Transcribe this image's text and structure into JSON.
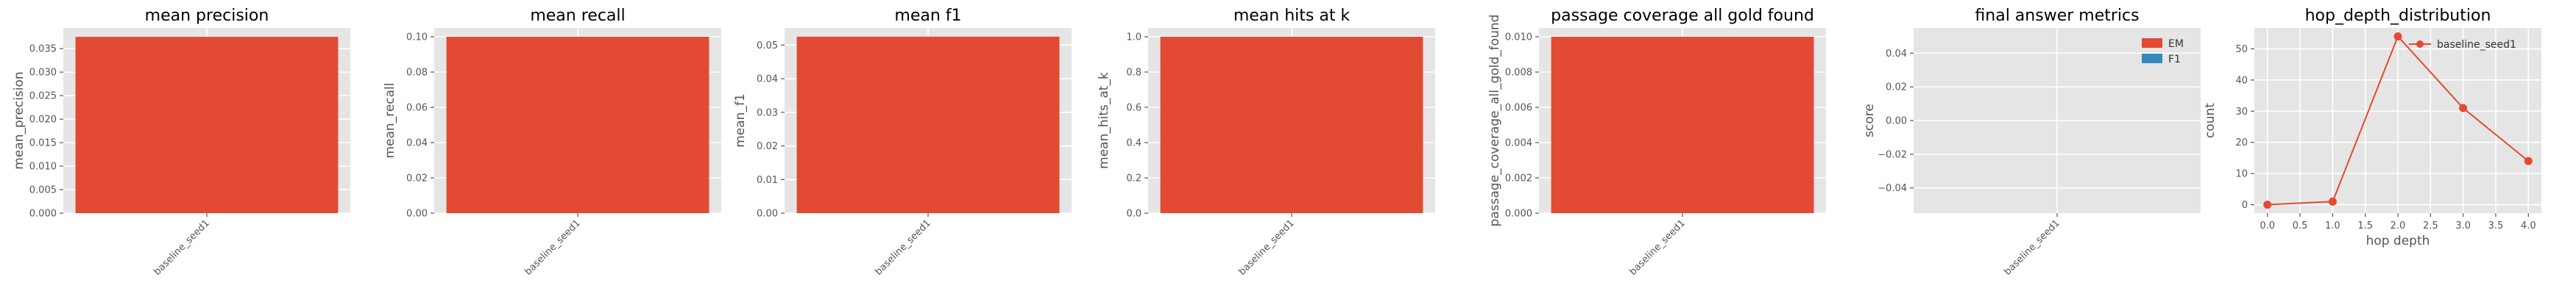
{
  "colors": {
    "red": "#E24A33",
    "blue": "#348ABD",
    "panel_bg": "#E5E5E5",
    "grid": "#FFFFFF"
  },
  "chart_data": [
    {
      "type": "bar",
      "title": "mean precision",
      "xlabel": "",
      "ylabel": "mean_precision",
      "categories": [
        "baseline_seed1"
      ],
      "values": [
        0.0375
      ],
      "ylim": [
        0,
        0.0394
      ],
      "yticks": [
        0.0,
        0.005,
        0.01,
        0.015,
        0.02,
        0.025,
        0.03,
        0.035
      ],
      "ytick_labels": [
        "0.000",
        "0.005",
        "0.010",
        "0.015",
        "0.020",
        "0.025",
        "0.030",
        "0.035"
      ],
      "grid": true
    },
    {
      "type": "bar",
      "title": "mean recall",
      "xlabel": "",
      "ylabel": "mean_recall",
      "categories": [
        "baseline_seed1"
      ],
      "values": [
        0.1
      ],
      "ylim": [
        0,
        0.105
      ],
      "yticks": [
        0.0,
        0.02,
        0.04,
        0.06,
        0.08,
        0.1
      ],
      "ytick_labels": [
        "0.00",
        "0.02",
        "0.04",
        "0.06",
        "0.08",
        "0.10"
      ],
      "grid": true
    },
    {
      "type": "bar",
      "title": "mean f1",
      "xlabel": "",
      "ylabel": "mean_f1",
      "categories": [
        "baseline_seed1"
      ],
      "values": [
        0.0525
      ],
      "ylim": [
        0,
        0.0551
      ],
      "yticks": [
        0.0,
        0.01,
        0.02,
        0.03,
        0.04,
        0.05
      ],
      "ytick_labels": [
        "0.00",
        "0.01",
        "0.02",
        "0.03",
        "0.04",
        "0.05"
      ],
      "grid": true
    },
    {
      "type": "bar",
      "title": "mean hits at k",
      "xlabel": "",
      "ylabel": "mean_hits_at_k",
      "categories": [
        "baseline_seed1"
      ],
      "values": [
        1.0
      ],
      "ylim": [
        0,
        1.05
      ],
      "yticks": [
        0.0,
        0.2,
        0.4,
        0.6,
        0.8,
        1.0
      ],
      "ytick_labels": [
        "0.0",
        "0.2",
        "0.4",
        "0.6",
        "0.8",
        "1.0"
      ],
      "grid": true
    },
    {
      "type": "bar",
      "title": "passage coverage all gold found",
      "xlabel": "",
      "ylabel": "passage_coverage_all_gold_found",
      "categories": [
        "baseline_seed1"
      ],
      "values": [
        0.01
      ],
      "ylim": [
        0,
        0.0105
      ],
      "yticks": [
        0.0,
        0.002,
        0.004,
        0.006,
        0.008,
        0.01
      ],
      "ytick_labels": [
        "0.000",
        "0.002",
        "0.004",
        "0.006",
        "0.008",
        "0.010"
      ],
      "grid": true
    },
    {
      "type": "bar",
      "title": "final answer metrics",
      "xlabel": "",
      "ylabel": "score",
      "categories": [
        "baseline_seed1"
      ],
      "series": [
        {
          "name": "EM",
          "values": [
            0
          ],
          "color": "#E24A33"
        },
        {
          "name": "F1",
          "values": [
            0
          ],
          "color": "#348ABD"
        }
      ],
      "ylim": [
        -0.055,
        0.055
      ],
      "yticks": [
        -0.04,
        -0.02,
        0.0,
        0.02,
        0.04
      ],
      "ytick_labels": [
        "−0.04",
        "−0.02",
        "0.00",
        "0.02",
        "0.04"
      ],
      "legend": "top-right",
      "grid": true
    },
    {
      "type": "line",
      "title": "hop_depth_distribution",
      "xlabel": "hop depth",
      "ylabel": "count",
      "series": [
        {
          "name": "baseline_seed1",
          "x": [
            0,
            1,
            2,
            3,
            4
          ],
          "values": [
            0,
            1,
            54,
            31,
            14
          ],
          "color": "#E24A33"
        }
      ],
      "xlim": [
        -0.2,
        4.2
      ],
      "ylim": [
        -2.7,
        56.7
      ],
      "xticks": [
        0.0,
        0.5,
        1.0,
        1.5,
        2.0,
        2.5,
        3.0,
        3.5,
        4.0
      ],
      "xtick_labels": [
        "0.0",
        "0.5",
        "1.0",
        "1.5",
        "2.0",
        "2.5",
        "3.0",
        "3.5",
        "4.0"
      ],
      "yticks": [
        0,
        10,
        20,
        30,
        40,
        50
      ],
      "ytick_labels": [
        "0",
        "10",
        "20",
        "30",
        "40",
        "50"
      ],
      "legend": "top-right",
      "grid": true
    }
  ]
}
